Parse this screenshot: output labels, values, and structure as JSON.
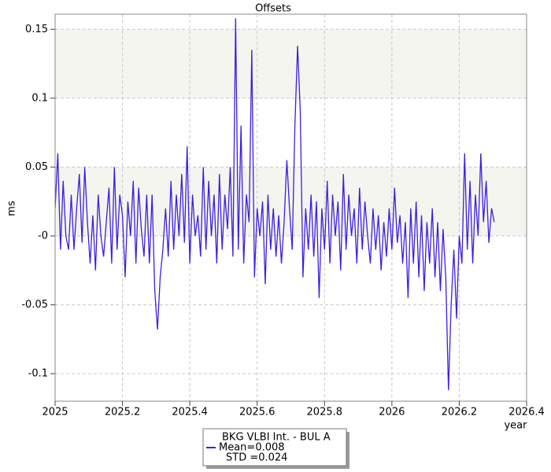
{
  "chart_data": {
    "type": "line",
    "title": "Offsets",
    "xlabel": "year",
    "ylabel": "ms",
    "xlim": [
      2025,
      2026.4
    ],
    "xticks": [
      2025,
      2025.2,
      2025.4,
      2025.6,
      2025.8,
      2026,
      2026.2,
      2026.4
    ],
    "ylim": [
      -0.12,
      0.161
    ],
    "yticks": [
      -0.1,
      -0.05,
      {
        "value": 0,
        "label": "-0"
      },
      0.05,
      0.1,
      0.15
    ],
    "grid": true,
    "x": [
      2025,
      2025.008,
      2025.016,
      2025.024,
      2025.032,
      2025.04,
      2025.048,
      2025.056,
      2025.064,
      2025.072,
      2025.08,
      2025.088,
      2025.096,
      2025.104,
      2025.112,
      2025.12,
      2025.128,
      2025.136,
      2025.144,
      2025.152,
      2025.16,
      2025.168,
      2025.176,
      2025.184,
      2025.192,
      2025.2,
      2025.208,
      2025.216,
      2025.224,
      2025.232,
      2025.24,
      2025.248,
      2025.256,
      2025.264,
      2025.272,
      2025.28,
      2025.288,
      2025.296,
      2025.304,
      2025.312,
      2025.32,
      2025.328,
      2025.336,
      2025.344,
      2025.352,
      2025.36,
      2025.368,
      2025.376,
      2025.384,
      2025.392,
      2025.4,
      2025.408,
      2025.416,
      2025.424,
      2025.432,
      2025.44,
      2025.448,
      2025.456,
      2025.464,
      2025.472,
      2025.48,
      2025.488,
      2025.496,
      2025.504,
      2025.512,
      2025.52,
      2025.528,
      2025.536,
      2025.544,
      2025.552,
      2025.56,
      2025.568,
      2025.576,
      2025.584,
      2025.592,
      2025.6,
      2025.608,
      2025.616,
      2025.624,
      2025.632,
      2025.64,
      2025.648,
      2025.656,
      2025.664,
      2025.672,
      2025.68,
      2025.688,
      2025.696,
      2025.704,
      2025.712,
      2025.72,
      2025.728,
      2025.736,
      2025.744,
      2025.752,
      2025.76,
      2025.768,
      2025.776,
      2025.784,
      2025.792,
      2025.8,
      2025.808,
      2025.816,
      2025.824,
      2025.832,
      2025.84,
      2025.848,
      2025.856,
      2025.864,
      2025.872,
      2025.88,
      2025.888,
      2025.896,
      2025.904,
      2025.912,
      2025.92,
      2025.928,
      2025.936,
      2025.944,
      2025.952,
      2025.96,
      2025.968,
      2025.976,
      2025.984,
      2025.992,
      2026,
      2026.008,
      2026.016,
      2026.024,
      2026.032,
      2026.04,
      2026.048,
      2026.056,
      2026.064,
      2026.072,
      2026.08,
      2026.088,
      2026.096,
      2026.104,
      2026.112,
      2026.12,
      2026.128,
      2026.136,
      2026.144,
      2026.152,
      2026.16,
      2026.168,
      2026.176,
      2026.184,
      2026.192,
      2026.2,
      2026.208,
      2026.216,
      2026.224,
      2026.232,
      2026.24,
      2026.248,
      2026.256,
      2026.264,
      2026.272,
      2026.28,
      2026.288,
      2026.296,
      2026.304
    ],
    "series": [
      {
        "name": "BKG VLBI Int. - BUL A",
        "color": "#3b1fe0",
        "values": [
          0.02,
          0.06,
          -0.01,
          0.04,
          0,
          -0.01,
          0.03,
          -0.01,
          0.02,
          0.045,
          -0.005,
          0.05,
          0.01,
          -0.02,
          0.015,
          -0.025,
          0.03,
          0,
          -0.015,
          0.01,
          0.035,
          -0.02,
          0.05,
          -0.01,
          0.03,
          0.015,
          -0.03,
          0.025,
          0,
          0.04,
          -0.02,
          0.035,
          0.005,
          -0.015,
          0.03,
          -0.02,
          0.03,
          -0.04,
          -0.068,
          -0.03,
          -0.01,
          0.02,
          -0.015,
          0.04,
          -0.01,
          0.03,
          0,
          0.045,
          -0.005,
          0.065,
          -0.02,
          0.03,
          0,
          0.015,
          -0.015,
          0.05,
          -0.01,
          0.04,
          0,
          0.03,
          -0.02,
          0.045,
          -0.01,
          0.03,
          0.005,
          0.05,
          -0.015,
          0.158,
          -0.01,
          0.08,
          -0.02,
          0.03,
          0.01,
          0.135,
          -0.03,
          0.02,
          0,
          0.025,
          -0.035,
          0.03,
          -0.01,
          0.02,
          -0.015,
          0.015,
          -0.02,
          0.01,
          0.055,
          0.02,
          -0.01,
          0.08,
          0.138,
          0.09,
          -0.03,
          0.02,
          -0.01,
          0.03,
          -0.015,
          0.025,
          -0.045,
          0.02,
          -0.01,
          0.04,
          -0.02,
          0.03,
          0,
          0.025,
          -0.025,
          0.045,
          -0.01,
          0.03,
          0,
          0.02,
          -0.02,
          0.035,
          -0.01,
          0.025,
          0,
          -0.02,
          0.02,
          -0.01,
          0.015,
          -0.025,
          0.01,
          -0.015,
          0.02,
          -0.01,
          0.035,
          -0.005,
          0.015,
          -0.02,
          0.01,
          -0.045,
          0.02,
          -0.02,
          0.025,
          -0.03,
          0.015,
          -0.04,
          0.01,
          -0.02,
          0.02,
          -0.03,
          0.01,
          -0.04,
          0.005,
          -0.03,
          -0.112,
          -0.05,
          -0.01,
          -0.06,
          0,
          -0.02,
          0.06,
          -0.01,
          0.04,
          -0.02,
          0.03,
          0,
          0.06,
          0.01,
          0.04,
          -0.005,
          0.02,
          0.01
        ]
      }
    ],
    "legend_stats": [
      "Mean=0.008",
      "STD =0.024"
    ]
  }
}
